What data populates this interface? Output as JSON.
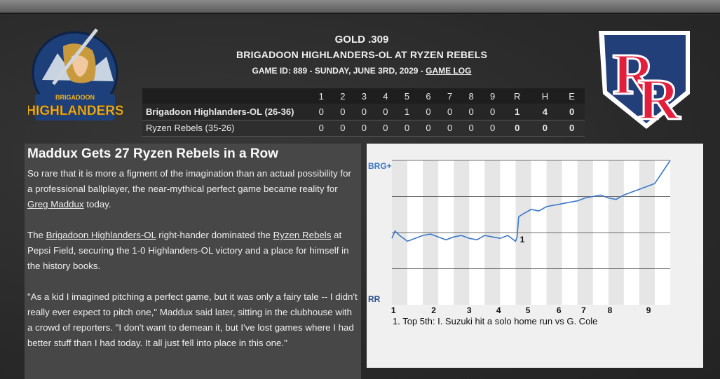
{
  "header": {
    "line1": "GOLD .309",
    "line2": "BRIGADOON HIGHLANDERS-OL AT RYZEN REBELS",
    "line3": "GAME ID: 889 - SUNDAY, JUNE 3RD, 2029 - ",
    "game_log": "GAME LOG"
  },
  "logos": {
    "away_text": "HIGHLANDERS",
    "away_subtext": "BRIGADOON",
    "home_text": "RR"
  },
  "linescore": {
    "columns": [
      "1",
      "2",
      "3",
      "4",
      "5",
      "6",
      "7",
      "8",
      "9",
      "R",
      "H",
      "E"
    ],
    "rows": [
      {
        "team": "Brigadoon Highlanders-OL (26-36)",
        "cells": [
          "0",
          "0",
          "0",
          "0",
          "1",
          "0",
          "0",
          "0",
          "0",
          "1",
          "4",
          "0"
        ]
      },
      {
        "team": "Ryzen Rebels (35-26)",
        "cells": [
          "0",
          "0",
          "0",
          "0",
          "0",
          "0",
          "0",
          "0",
          "0",
          "0",
          "0",
          "0"
        ]
      }
    ]
  },
  "article": {
    "title": "Maddux Gets 27 Ryzen Rebels in a Row",
    "p1_a": "So rare that it is more a figment of the imagination than an actual possibility for a professional ballplayer, the near-mythical perfect game became reality for ",
    "p1_link": "Greg Maddux",
    "p1_b": " today.",
    "p2_a": "The ",
    "p2_link1": "Brigadoon Highlanders-OL",
    "p2_b": " right-hander dominated the ",
    "p2_link2": " Ryzen Rebels",
    "p2_c": " at Pepsi Field, securing the 1-0 Highlanders-OL victory and a place for himself in the history books.",
    "p3": "\"As a kid I imagined pitching a perfect game, but it was only a fairy tale -- I didn't really ever expect to pitch one,\" Maddux said later, sitting in the clubhouse with a crowd of reporters. \"I don't want to demean it, but I've lost games where I had better stuff than I had today. It all just fell into place in this one.\""
  },
  "chart": {
    "top_label": "BRG+",
    "bottom_label": "RR",
    "marker_label": "1",
    "caption": "1. Top 5th: I. Suzuki hit a solo home run vs G. Cole",
    "line_color": "#3a78c8"
  },
  "chart_data": {
    "type": "line",
    "title": "",
    "xlabel": "",
    "ylabel": "",
    "x_tick_labels": [
      "1",
      "2",
      "3",
      "4",
      "5",
      "6",
      "7",
      "8",
      "9"
    ],
    "ylim": [
      0,
      1
    ],
    "y_labels": {
      "top": "BRG+",
      "bottom": "RR"
    },
    "annotations": [
      {
        "label": "1",
        "x": 5.05,
        "text": "1. Top 5th: I. Suzuki hit a solo home run vs G. Cole"
      }
    ],
    "series": [
      {
        "x": [
          1.0,
          1.1,
          1.25,
          1.5,
          1.75,
          2.0,
          2.25,
          2.5,
          2.75,
          3.0,
          3.25,
          3.5,
          3.75,
          4.0,
          4.25,
          4.5,
          4.75,
          5.0,
          5.05,
          5.1,
          5.25,
          5.5,
          5.75,
          6.0,
          6.25,
          6.5,
          6.75,
          7.0,
          7.25,
          7.5,
          7.75,
          8.0,
          8.25,
          8.5,
          8.75,
          9.0,
          9.25,
          9.5,
          9.75,
          10.0
        ],
        "y": [
          0.46,
          0.51,
          0.48,
          0.44,
          0.46,
          0.48,
          0.49,
          0.47,
          0.45,
          0.47,
          0.48,
          0.46,
          0.45,
          0.48,
          0.47,
          0.46,
          0.48,
          0.44,
          0.47,
          0.61,
          0.63,
          0.66,
          0.65,
          0.68,
          0.69,
          0.7,
          0.71,
          0.72,
          0.74,
          0.75,
          0.76,
          0.74,
          0.73,
          0.76,
          0.78,
          0.8,
          0.82,
          0.84,
          0.92,
          1.0
        ]
      }
    ]
  }
}
